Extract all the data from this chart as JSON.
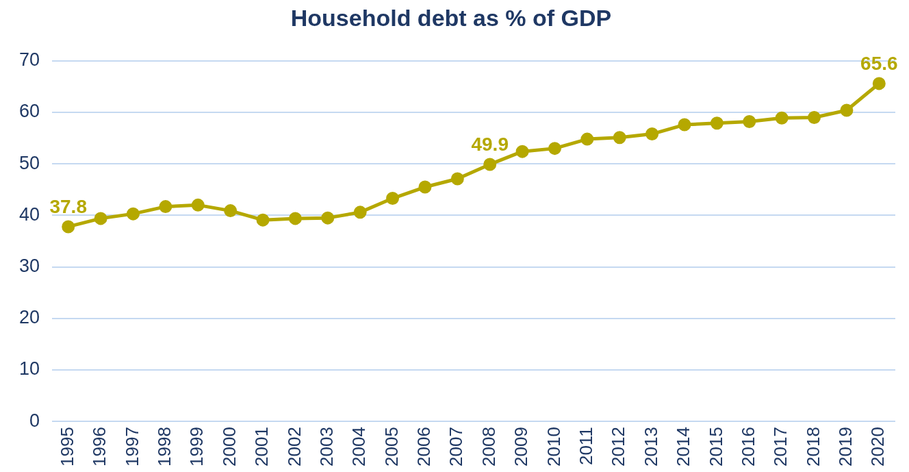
{
  "chart_data": {
    "type": "line",
    "title": "Household debt as % of GDP",
    "categories": [
      "1995",
      "1996",
      "1997",
      "1998",
      "1999",
      "2000",
      "2001",
      "2002",
      "2003",
      "2004",
      "2005",
      "2006",
      "2007",
      "2008",
      "2009",
      "2010",
      "2011",
      "2012",
      "2013",
      "2014",
      "2015",
      "2016",
      "2017",
      "2018",
      "2019",
      "2020"
    ],
    "series": [
      {
        "color": "#b5a800",
        "values": [
          37.8,
          39.4,
          40.3,
          41.7,
          42.0,
          40.9,
          39.1,
          39.4,
          39.5,
          40.6,
          43.3,
          45.5,
          47.1,
          49.9,
          52.4,
          53.0,
          54.8,
          55.1,
          55.8,
          57.6,
          57.9,
          58.2,
          58.9,
          59.0,
          60.4,
          65.6
        ],
        "value_labels": [
          "37.8",
          null,
          null,
          null,
          null,
          null,
          null,
          null,
          null,
          null,
          null,
          null,
          null,
          "49.9",
          null,
          null,
          null,
          null,
          null,
          null,
          null,
          null,
          null,
          null,
          null,
          "65.6"
        ]
      }
    ],
    "ylim": [
      0,
      70
    ],
    "yticks": [
      0,
      10,
      20,
      30,
      40,
      50,
      60,
      70
    ],
    "grid": "y",
    "marker": "circle",
    "line_style": "solid"
  }
}
